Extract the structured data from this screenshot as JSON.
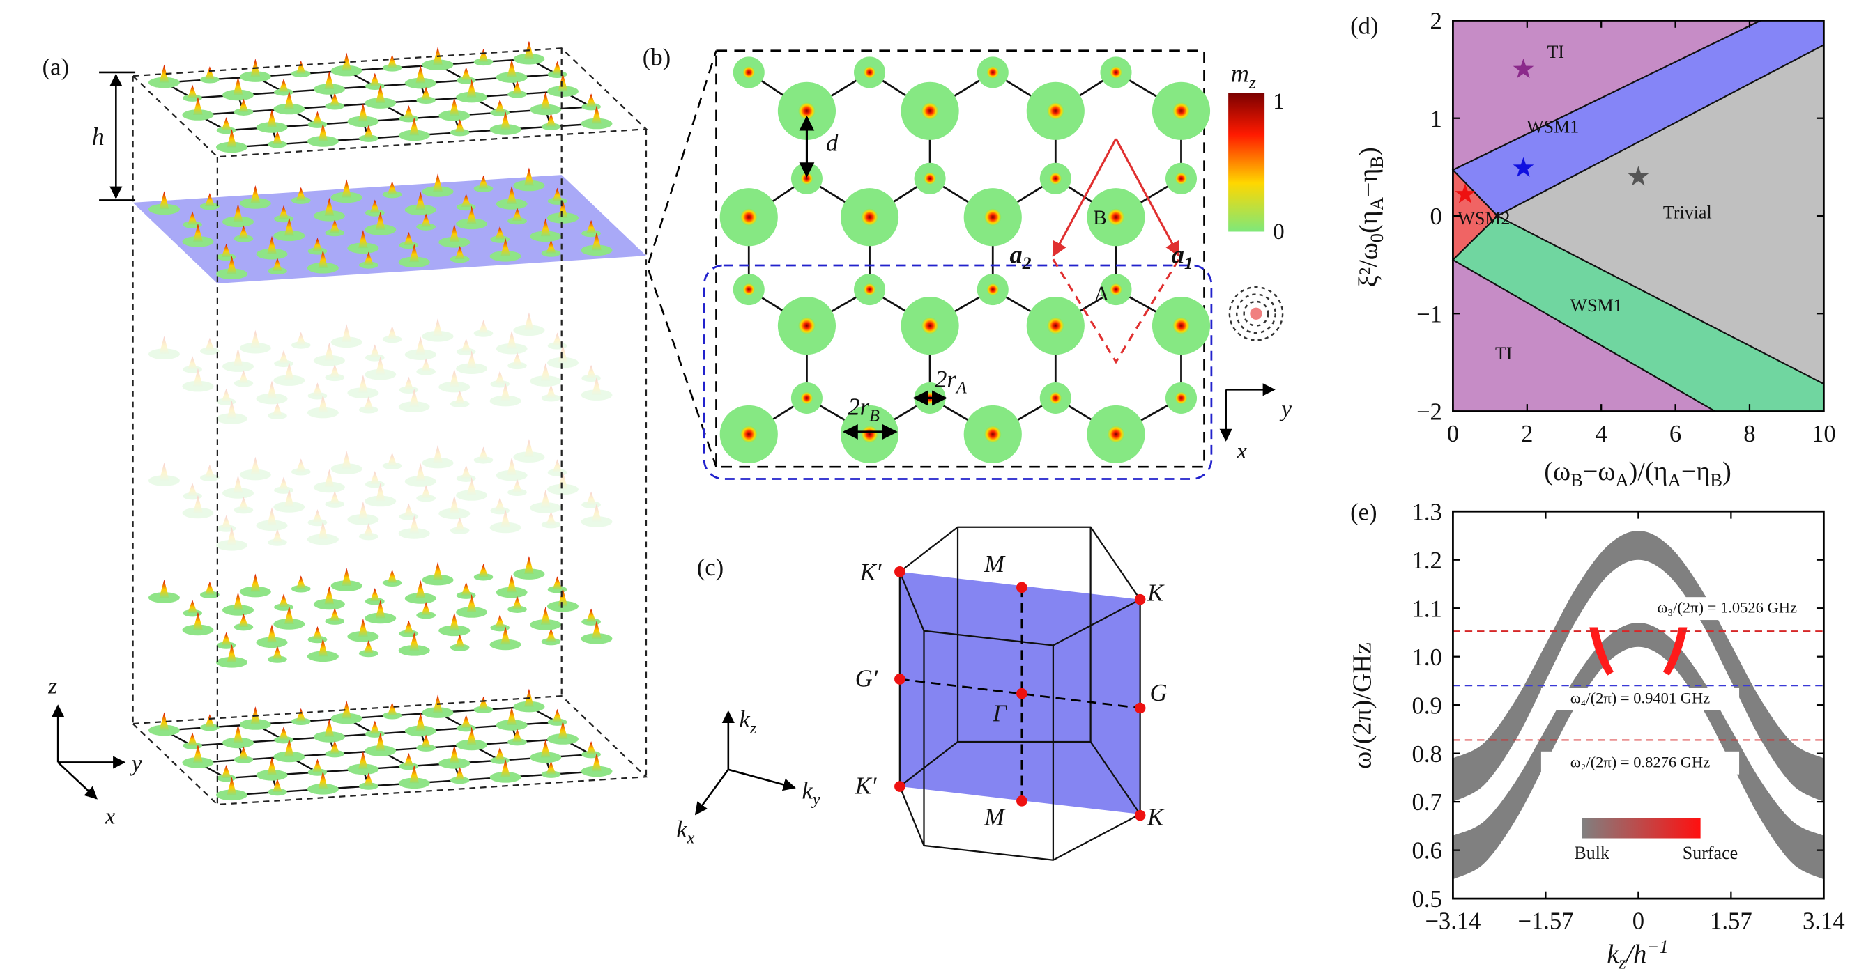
{
  "panel_a": {
    "label": "(a)",
    "height_label": "h",
    "axes": {
      "z": "z",
      "y": "y",
      "x": "x"
    }
  },
  "panel_b": {
    "label": "(b)",
    "spacing_label": "d",
    "site_b": "B",
    "site_a": "A",
    "a2": {
      "base": "a",
      "sub": "2"
    },
    "a1": {
      "base": "a",
      "sub": "1"
    },
    "radius_b": {
      "base": "2r",
      "sub": "B"
    },
    "radius_a": {
      "base": "2r",
      "sub": "A"
    },
    "colorbar": {
      "label": {
        "base": "m",
        "sub": "z"
      },
      "max": 1,
      "min": 0
    },
    "axes": {
      "y": "y",
      "x": "x"
    }
  },
  "panel_c": {
    "label": "(c)",
    "points": [
      "K′",
      "M",
      "K",
      "G′",
      "Γ",
      "G",
      "K′",
      "M",
      "K"
    ],
    "axes": {
      "kz": {
        "base": "k",
        "sub": "z"
      },
      "ky": {
        "base": "k",
        "sub": "y"
      },
      "kx": {
        "base": "k",
        "sub": "x"
      }
    }
  },
  "panel_d": {
    "label": "(d)",
    "chart": {
      "type": "phase-diagram",
      "xlabel": [
        "(ω",
        "B",
        "−ω",
        "A",
        ")/(η",
        "A",
        "−η",
        "B",
        ")"
      ],
      "ylabel": [
        "ξ²/ω",
        "0",
        "(η",
        "A",
        "−η",
        "B",
        ")"
      ],
      "xlim": [
        0,
        10
      ],
      "ylim": [
        -2,
        2
      ],
      "xticks": [
        0,
        2,
        4,
        6,
        8,
        10
      ],
      "yticks": [
        {
          "value": -2,
          "label": "−2"
        },
        {
          "value": -1,
          "label": "−1"
        },
        0,
        1,
        2
      ],
      "regions": [
        {
          "name": "TI",
          "color": "#c68cc6",
          "text_color": "#8a2b8a",
          "x": [
            0,
            0,
            8.3
          ],
          "y": [
            0.47,
            2,
            2
          ]
        },
        {
          "name": "WSM1",
          "color": "#8585f7",
          "text_color": "#2323c8",
          "x": [
            0,
            8.3,
            10,
            10,
            1.2
          ],
          "y": [
            0.47,
            2,
            2,
            1.75,
            0
          ]
        },
        {
          "name": "Trivial",
          "color": "#c0c0c0",
          "text_color": "#444444",
          "x": [
            1.2,
            10,
            10
          ],
          "y": [
            0,
            1.75,
            -1.72
          ]
        },
        {
          "name": "WSM2",
          "color": "#f06464",
          "text_color": "#c00000",
          "x": [
            0,
            1.2,
            0
          ],
          "y": [
            0.47,
            0,
            -0.45
          ]
        },
        {
          "name": "WSM1",
          "color": "#70d6a0",
          "text_color": "#1a7a4a",
          "x": [
            0,
            1.2,
            10,
            10,
            7.07
          ],
          "y": [
            -0.45,
            0,
            -1.72,
            -2,
            -2
          ]
        },
        {
          "name": "TI",
          "color": "#c68cc6",
          "text_color": "#8a2b8a",
          "x": [
            0,
            7.07,
            0
          ],
          "y": [
            -0.45,
            -2,
            -2
          ]
        }
      ],
      "markers": {
        "x": [
          1.9,
          1.9,
          5.0,
          0.33
        ],
        "y": [
          1.5,
          0.49,
          0.4,
          0.22
        ],
        "colors": [
          "#8b2a8b",
          "#1010e0",
          "#555555",
          "#ee1111"
        ]
      }
    }
  },
  "panel_e": {
    "label": "(e)",
    "chart": {
      "type": "band",
      "ylabel": "ω/(2π)/GHz",
      "xlabel": {
        "base": "k",
        "sub": "z",
        "rest": "/h",
        "sup": "−1"
      },
      "xlim": [
        -3.14,
        3.14
      ],
      "ylim": [
        0.5,
        1.3
      ],
      "xticks": [
        {
          "value": -3.14,
          "label": "−3.14"
        },
        {
          "value": -1.57,
          "label": "−1.57"
        },
        0,
        1.57,
        3.14
      ],
      "yticks": [
        0.5,
        0.6,
        0.7,
        0.8,
        0.9,
        {
          "value": 1,
          "label": "1.0"
        },
        1.1,
        1.2,
        1.3
      ],
      "k": [
        -3.14,
        -2.62,
        -2.09,
        -1.57,
        -1.05,
        -0.52,
        0,
        0.52,
        1.05,
        1.57,
        2.09,
        2.62,
        3.14
      ],
      "bands": [
        {
          "color": "#808080",
          "upper": [
            0.79,
            0.821,
            0.908,
            1.025,
            1.143,
            1.229,
            1.26,
            1.229,
            1.143,
            1.025,
            0.908,
            0.821,
            0.79
          ],
          "lower": [
            0.7,
            0.734,
            0.825,
            0.95,
            1.075,
            1.167,
            1.2,
            1.167,
            1.075,
            0.95,
            0.825,
            0.734,
            0.7
          ]
        },
        {
          "color": "#808080",
          "upper": [
            0.63,
            0.659,
            0.74,
            0.85,
            0.96,
            1.041,
            1.07,
            1.041,
            0.96,
            0.85,
            0.74,
            0.659,
            0.63
          ],
          "lower": [
            0.54,
            0.572,
            0.66,
            0.78,
            0.9,
            0.988,
            1.02,
            0.988,
            0.9,
            0.78,
            0.66,
            0.572,
            0.54
          ]
        }
      ],
      "levels": [
        {
          "value": 1.0526,
          "label": "ω₃/(2π) = 1.0526 GHz",
          "color": "#d62728"
        },
        {
          "value": 0.9401,
          "label": "ω₄/(2π) = 0.9401 GHz",
          "color": "#3a3ad6"
        },
        {
          "value": 0.8276,
          "label": "ω₂/(2π) = 0.8276 GHz",
          "color": "#d62728"
        }
      ],
      "legend": {
        "bulk": "Bulk",
        "surface": "Surface",
        "colors": [
          "#808080",
          "#ff1010"
        ]
      }
    }
  }
}
